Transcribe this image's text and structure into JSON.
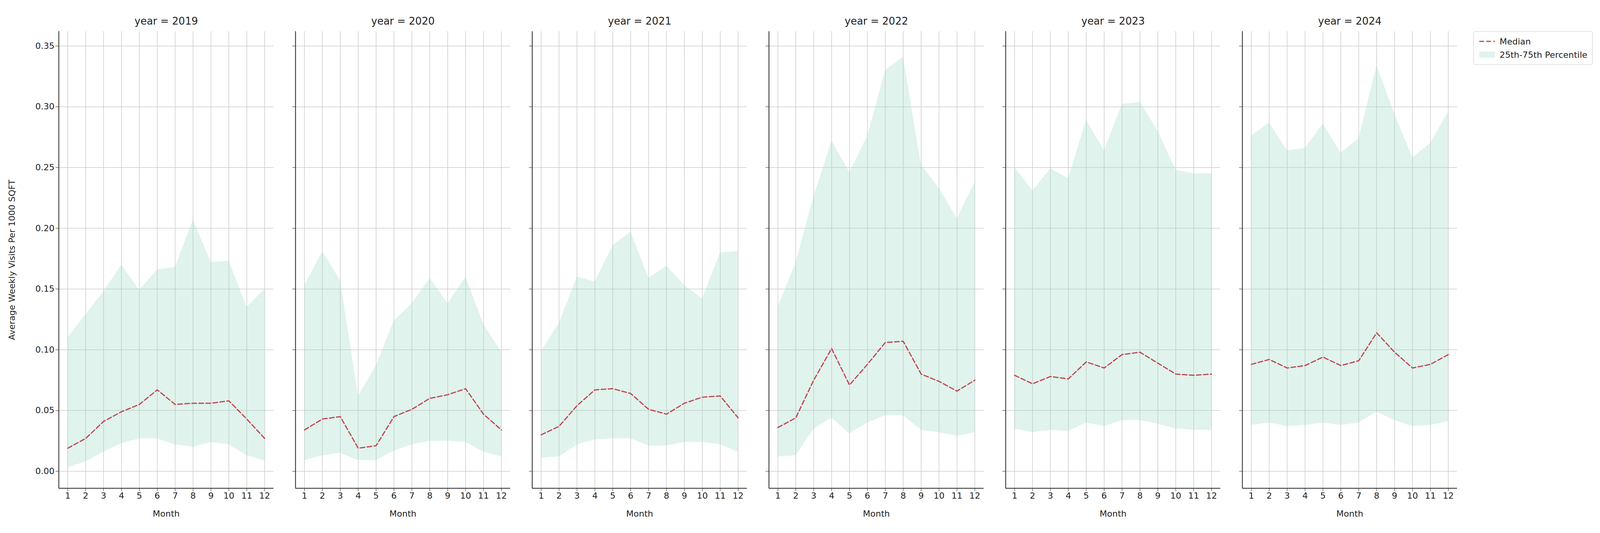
{
  "chart_data": [
    {
      "type": "line",
      "title": "year = 2019",
      "xlabel": "Month",
      "ylabel": "Average Weekly Visits Per 1000 SQFT",
      "grid": true,
      "x": [
        1,
        2,
        3,
        4,
        5,
        6,
        7,
        8,
        9,
        10,
        11,
        12
      ],
      "xlim": [
        0.5,
        12.5
      ],
      "xticks": [
        1,
        2,
        3,
        4,
        5,
        6,
        7,
        8,
        9,
        10,
        11,
        12
      ],
      "ylim": [
        -0.014,
        0.362
      ],
      "yticks": [
        {
          "value": 0,
          "label": "0.00"
        },
        {
          "value": 0.05,
          "label": "0.05"
        },
        {
          "value": 0.1,
          "label": "0.10"
        },
        {
          "value": 0.15,
          "label": "0.15"
        },
        {
          "value": 0.2,
          "label": "0.20"
        },
        {
          "value": 0.25,
          "label": "0.25"
        },
        {
          "value": 0.3,
          "label": "0.30"
        },
        {
          "value": 0.35,
          "label": "0.35"
        }
      ],
      "series": [
        {
          "name": "Median",
          "type": "line",
          "color": "#c0444a",
          "line_style": "dashed",
          "values": [
            0.019,
            0.027,
            0.041,
            0.049,
            0.055,
            0.067,
            0.055,
            0.056,
            0.056,
            0.058,
            0.043,
            0.027
          ]
        },
        {
          "name": "25th-75th Percentile",
          "type": "area",
          "color": "#98d8c4",
          "lower": [
            0.003,
            0.008,
            0.016,
            0.023,
            0.027,
            0.027,
            0.022,
            0.02,
            0.024,
            0.022,
            0.013,
            0.009
          ],
          "upper": [
            0.11,
            0.129,
            0.148,
            0.17,
            0.149,
            0.166,
            0.168,
            0.207,
            0.172,
            0.173,
            0.135,
            0.15
          ]
        }
      ]
    },
    {
      "type": "line",
      "title": "year = 2020",
      "xlabel": "Month",
      "grid": true,
      "tick_labels": "x",
      "x": [
        1,
        2,
        3,
        4,
        5,
        6,
        7,
        8,
        9,
        10,
        11,
        12
      ],
      "xlim": [
        0.5,
        12.5
      ],
      "xticks": [
        1,
        2,
        3,
        4,
        5,
        6,
        7,
        8,
        9,
        10,
        11,
        12
      ],
      "ylim": [
        -0.014,
        0.362
      ],
      "yticks": [
        {
          "value": 0,
          "label": "0.00"
        },
        {
          "value": 0.05,
          "label": "0.05"
        },
        {
          "value": 0.1,
          "label": "0.10"
        },
        {
          "value": 0.15,
          "label": "0.15"
        },
        {
          "value": 0.2,
          "label": "0.20"
        },
        {
          "value": 0.25,
          "label": "0.25"
        },
        {
          "value": 0.3,
          "label": "0.30"
        },
        {
          "value": 0.35,
          "label": "0.35"
        }
      ],
      "series": [
        {
          "name": "Median",
          "type": "line",
          "color": "#c0444a",
          "line_style": "dashed",
          "values": [
            0.034,
            0.043,
            0.045,
            0.019,
            0.021,
            0.045,
            0.051,
            0.06,
            0.063,
            0.068,
            0.047,
            0.034
          ]
        },
        {
          "name": "25th-75th Percentile",
          "type": "area",
          "color": "#98d8c4",
          "lower": [
            0.009,
            0.013,
            0.015,
            0.009,
            0.009,
            0.017,
            0.022,
            0.025,
            0.025,
            0.024,
            0.016,
            0.012
          ],
          "upper": [
            0.153,
            0.181,
            0.157,
            0.062,
            0.087,
            0.124,
            0.138,
            0.159,
            0.138,
            0.16,
            0.121,
            0.098
          ]
        }
      ]
    },
    {
      "type": "line",
      "title": "year = 2021",
      "xlabel": "Month",
      "grid": true,
      "tick_labels": "x",
      "x": [
        1,
        2,
        3,
        4,
        5,
        6,
        7,
        8,
        9,
        10,
        11,
        12
      ],
      "xlim": [
        0.5,
        12.5
      ],
      "xticks": [
        1,
        2,
        3,
        4,
        5,
        6,
        7,
        8,
        9,
        10,
        11,
        12
      ],
      "ylim": [
        -0.014,
        0.362
      ],
      "yticks": [
        {
          "value": 0,
          "label": "0.00"
        },
        {
          "value": 0.05,
          "label": "0.05"
        },
        {
          "value": 0.1,
          "label": "0.10"
        },
        {
          "value": 0.15,
          "label": "0.15"
        },
        {
          "value": 0.2,
          "label": "0.20"
        },
        {
          "value": 0.25,
          "label": "0.25"
        },
        {
          "value": 0.3,
          "label": "0.30"
        },
        {
          "value": 0.35,
          "label": "0.35"
        }
      ],
      "series": [
        {
          "name": "Median",
          "type": "line",
          "color": "#c0444a",
          "line_style": "dashed",
          "values": [
            0.03,
            0.037,
            0.054,
            0.067,
            0.068,
            0.064,
            0.051,
            0.047,
            0.056,
            0.061,
            0.062,
            0.044
          ]
        },
        {
          "name": "25th-75th Percentile",
          "type": "area",
          "color": "#98d8c4",
          "lower": [
            0.011,
            0.012,
            0.022,
            0.026,
            0.027,
            0.027,
            0.021,
            0.021,
            0.024,
            0.024,
            0.022,
            0.016
          ],
          "upper": [
            0.099,
            0.122,
            0.16,
            0.156,
            0.186,
            0.197,
            0.159,
            0.169,
            0.153,
            0.142,
            0.18,
            0.181
          ]
        }
      ]
    },
    {
      "type": "line",
      "title": "year = 2022",
      "xlabel": "Month",
      "grid": true,
      "tick_labels": "x",
      "x": [
        1,
        2,
        3,
        4,
        5,
        6,
        7,
        8,
        9,
        10,
        11,
        12
      ],
      "xlim": [
        0.5,
        12.5
      ],
      "xticks": [
        1,
        2,
        3,
        4,
        5,
        6,
        7,
        8,
        9,
        10,
        11,
        12
      ],
      "ylim": [
        -0.014,
        0.362
      ],
      "yticks": [
        {
          "value": 0,
          "label": "0.00"
        },
        {
          "value": 0.05,
          "label": "0.05"
        },
        {
          "value": 0.1,
          "label": "0.10"
        },
        {
          "value": 0.15,
          "label": "0.15"
        },
        {
          "value": 0.2,
          "label": "0.20"
        },
        {
          "value": 0.25,
          "label": "0.25"
        },
        {
          "value": 0.3,
          "label": "0.30"
        },
        {
          "value": 0.35,
          "label": "0.35"
        }
      ],
      "series": [
        {
          "name": "Median",
          "type": "line",
          "color": "#c0444a",
          "line_style": "dashed",
          "values": [
            0.036,
            0.044,
            0.075,
            0.101,
            0.071,
            0.088,
            0.106,
            0.107,
            0.08,
            0.074,
            0.066,
            0.075
          ]
        },
        {
          "name": "25th-75th Percentile",
          "type": "area",
          "color": "#98d8c4",
          "lower": [
            0.012,
            0.013,
            0.035,
            0.044,
            0.031,
            0.04,
            0.046,
            0.046,
            0.034,
            0.032,
            0.029,
            0.032
          ],
          "upper": [
            0.135,
            0.172,
            0.226,
            0.272,
            0.246,
            0.276,
            0.33,
            0.341,
            0.252,
            0.233,
            0.208,
            0.238
          ]
        }
      ]
    },
    {
      "type": "line",
      "title": "year = 2023",
      "xlabel": "Month",
      "grid": true,
      "tick_labels": "x",
      "x": [
        1,
        2,
        3,
        4,
        5,
        6,
        7,
        8,
        9,
        10,
        11,
        12
      ],
      "xlim": [
        0.5,
        12.5
      ],
      "xticks": [
        1,
        2,
        3,
        4,
        5,
        6,
        7,
        8,
        9,
        10,
        11,
        12
      ],
      "ylim": [
        -0.014,
        0.362
      ],
      "yticks": [
        {
          "value": 0,
          "label": "0.00"
        },
        {
          "value": 0.05,
          "label": "0.05"
        },
        {
          "value": 0.1,
          "label": "0.10"
        },
        {
          "value": 0.15,
          "label": "0.15"
        },
        {
          "value": 0.2,
          "label": "0.20"
        },
        {
          "value": 0.25,
          "label": "0.25"
        },
        {
          "value": 0.3,
          "label": "0.30"
        },
        {
          "value": 0.35,
          "label": "0.35"
        }
      ],
      "series": [
        {
          "name": "Median",
          "type": "line",
          "color": "#c0444a",
          "line_style": "dashed",
          "values": [
            0.079,
            0.072,
            0.078,
            0.076,
            0.09,
            0.085,
            0.096,
            0.098,
            0.089,
            0.08,
            0.079,
            0.08
          ]
        },
        {
          "name": "25th-75th Percentile",
          "type": "area",
          "color": "#98d8c4",
          "lower": [
            0.035,
            0.032,
            0.034,
            0.033,
            0.04,
            0.037,
            0.042,
            0.042,
            0.039,
            0.035,
            0.034,
            0.034
          ],
          "upper": [
            0.25,
            0.231,
            0.249,
            0.241,
            0.289,
            0.264,
            0.302,
            0.304,
            0.28,
            0.248,
            0.245,
            0.245
          ]
        }
      ]
    },
    {
      "type": "line",
      "title": "year = 2024",
      "xlabel": "Month",
      "grid": true,
      "tick_labels": "x",
      "legend": "upper right",
      "x": [
        1,
        2,
        3,
        4,
        5,
        6,
        7,
        8,
        9,
        10,
        11,
        12
      ],
      "xlim": [
        0.5,
        12.5
      ],
      "xticks": [
        1,
        2,
        3,
        4,
        5,
        6,
        7,
        8,
        9,
        10,
        11,
        12
      ],
      "ylim": [
        -0.014,
        0.362
      ],
      "yticks": [
        {
          "value": 0,
          "label": "0.00"
        },
        {
          "value": 0.05,
          "label": "0.05"
        },
        {
          "value": 0.1,
          "label": "0.10"
        },
        {
          "value": 0.15,
          "label": "0.15"
        },
        {
          "value": 0.2,
          "label": "0.20"
        },
        {
          "value": 0.25,
          "label": "0.25"
        },
        {
          "value": 0.3,
          "label": "0.30"
        },
        {
          "value": 0.35,
          "label": "0.35"
        }
      ],
      "series": [
        {
          "name": "Median",
          "type": "line",
          "color": "#c0444a",
          "line_style": "dashed",
          "values": [
            0.088,
            0.092,
            0.085,
            0.087,
            0.094,
            0.087,
            0.091,
            0.114,
            0.098,
            0.085,
            0.088,
            0.096
          ]
        },
        {
          "name": "25th-75th Percentile",
          "type": "area",
          "color": "#98d8c4",
          "lower": [
            0.038,
            0.04,
            0.037,
            0.038,
            0.04,
            0.038,
            0.04,
            0.049,
            0.042,
            0.037,
            0.038,
            0.041
          ],
          "upper": [
            0.276,
            0.287,
            0.264,
            0.266,
            0.286,
            0.262,
            0.274,
            0.334,
            0.294,
            0.258,
            0.27,
            0.296
          ]
        }
      ]
    }
  ]
}
